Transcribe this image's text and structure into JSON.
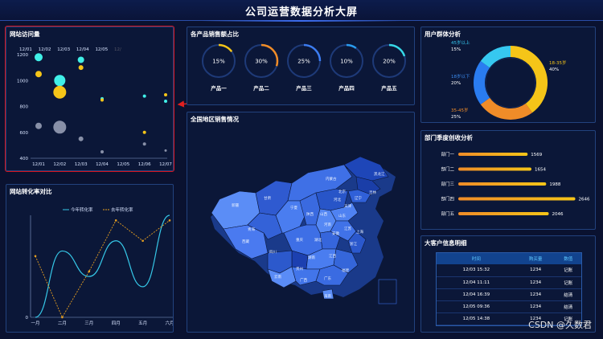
{
  "title": "公司运营数据分析大屏",
  "visits": {
    "title": "网站访问量",
    "legend": [
      "12/01",
      "12/02",
      "12/03",
      "12/04",
      "12/05",
      "12/"
    ],
    "chart_data": {
      "type": "scatter",
      "x": [
        "12/01",
        "12/02",
        "12/03",
        "12/04",
        "12/05",
        "12/06",
        "12/07"
      ],
      "yticks": [
        400,
        600,
        800,
        1000,
        1200
      ],
      "ylim": [
        400,
        1200
      ],
      "points": [
        {
          "x": "12/01",
          "y": 1180,
          "c": "#40f0e8",
          "s": 5
        },
        {
          "x": "12/01",
          "y": 1050,
          "c": "#f5c518",
          "s": 4
        },
        {
          "x": "12/01",
          "y": 650,
          "c": "#8890a8",
          "s": 4
        },
        {
          "x": "12/02",
          "y": 1000,
          "c": "#40f0e8",
          "s": 7
        },
        {
          "x": "12/02",
          "y": 910,
          "c": "#f5c518",
          "s": 8
        },
        {
          "x": "12/02",
          "y": 640,
          "c": "#8890a8",
          "s": 8
        },
        {
          "x": "12/03",
          "y": 1160,
          "c": "#40f0e8",
          "s": 4
        },
        {
          "x": "12/03",
          "y": 1100,
          "c": "#f5c518",
          "s": 3
        },
        {
          "x": "12/03",
          "y": 550,
          "c": "#8890a8",
          "s": 3
        },
        {
          "x": "12/04",
          "y": 860,
          "c": "#40f0e8",
          "s": 2
        },
        {
          "x": "12/04",
          "y": 850,
          "c": "#f5c518",
          "s": 2
        },
        {
          "x": "12/04",
          "y": 450,
          "c": "#8890a8",
          "s": 2
        },
        {
          "x": "12/06",
          "y": 880,
          "c": "#40f0e8",
          "s": 2
        },
        {
          "x": "12/06",
          "y": 600,
          "c": "#f5c518",
          "s": 2
        },
        {
          "x": "12/06",
          "y": 510,
          "c": "#8890a8",
          "s": 2
        },
        {
          "x": "12/07",
          "y": 890,
          "c": "#f5c518",
          "s": 2
        },
        {
          "x": "12/07",
          "y": 840,
          "c": "#40f0e8",
          "s": 2
        },
        {
          "x": "12/07",
          "y": 460,
          "c": "#8890a8",
          "s": 1.5
        }
      ]
    }
  },
  "conversion": {
    "title": "网站转化率对比",
    "chart_data": {
      "type": "line",
      "x": [
        "一月",
        "二月",
        "三月",
        "四月",
        "五月",
        "六月"
      ],
      "ylim": [
        0,
        100
      ],
      "series": [
        {
          "name": "今年转化率",
          "color": "#36c8e8",
          "values": [
            0,
            65,
            40,
            75,
            30,
            100
          ]
        },
        {
          "name": "去年转化率",
          "color": "#e8a020",
          "values": [
            60,
            0,
            45,
            95,
            75,
            95
          ]
        }
      ],
      "tick0": "0"
    }
  },
  "products": {
    "title": "各产品销售额占比",
    "items": [
      {
        "name": "产品一",
        "pct": "15%",
        "v": 15,
        "color": "#f5c518"
      },
      {
        "name": "产品二",
        "pct": "30%",
        "v": 30,
        "color": "#f08c28"
      },
      {
        "name": "产品三",
        "pct": "25%",
        "v": 25,
        "color": "#3c7cf0"
      },
      {
        "name": "产品四",
        "pct": "10%",
        "v": 10,
        "color": "#2a9cf0"
      },
      {
        "name": "产品五",
        "pct": "20%",
        "v": 20,
        "color": "#36d8e8"
      }
    ]
  },
  "map": {
    "title": "全国地区销售情况",
    "labels": [
      "黑龙江",
      "吉林",
      "辽宁",
      "内蒙古",
      "新疆",
      "甘肃",
      "青海",
      "西藏",
      "四川",
      "陕西",
      "山西",
      "河北",
      "北京",
      "天津",
      "山东",
      "河南",
      "湖北",
      "安徽",
      "江苏",
      "上海",
      "浙江",
      "湖南",
      "江西",
      "福建",
      "贵州",
      "重庆",
      "云南",
      "广西",
      "广东",
      "海南",
      "宁夏"
    ]
  },
  "users": {
    "title": "用户群体分析",
    "chart_data": {
      "type": "pie",
      "categories": [
        "18-35岁",
        "35-45岁",
        "18岁以下",
        "45岁以上"
      ],
      "values": [
        40,
        25,
        20,
        15
      ],
      "colors": [
        "#f5c518",
        "#f08c28",
        "#2a7cf0",
        "#36c8f0"
      ]
    },
    "labels": [
      {
        "name": "45岁以上",
        "pct": "15%"
      },
      {
        "name": "18岁以下",
        "pct": "20%"
      },
      {
        "name": "35-45岁",
        "pct": "25%"
      },
      {
        "name": "18-35岁",
        "pct": "40%"
      }
    ]
  },
  "dept": {
    "title": "部门季度创收分析",
    "chart_data": {
      "type": "bar",
      "categories": [
        "部门一",
        "部门二",
        "部门三",
        "部门四",
        "部门五"
      ],
      "values": [
        1569,
        1654,
        1988,
        2646,
        2046
      ],
      "xlim": [
        0,
        2800
      ]
    }
  },
  "customers": {
    "title": "大客户信息明细",
    "headers": [
      "时间",
      "购买量",
      "数值"
    ],
    "rows": [
      [
        "12/03 15:32",
        "1234",
        "记账"
      ],
      [
        "12/04 11:11",
        "1234",
        "记账"
      ],
      [
        "12/04 16:39",
        "1234",
        "结清"
      ],
      [
        "12/05 09:36",
        "1234",
        "结清"
      ],
      [
        "12/05 14:38",
        "1234",
        "记账"
      ]
    ]
  },
  "watermark": "CSDN @久数君"
}
